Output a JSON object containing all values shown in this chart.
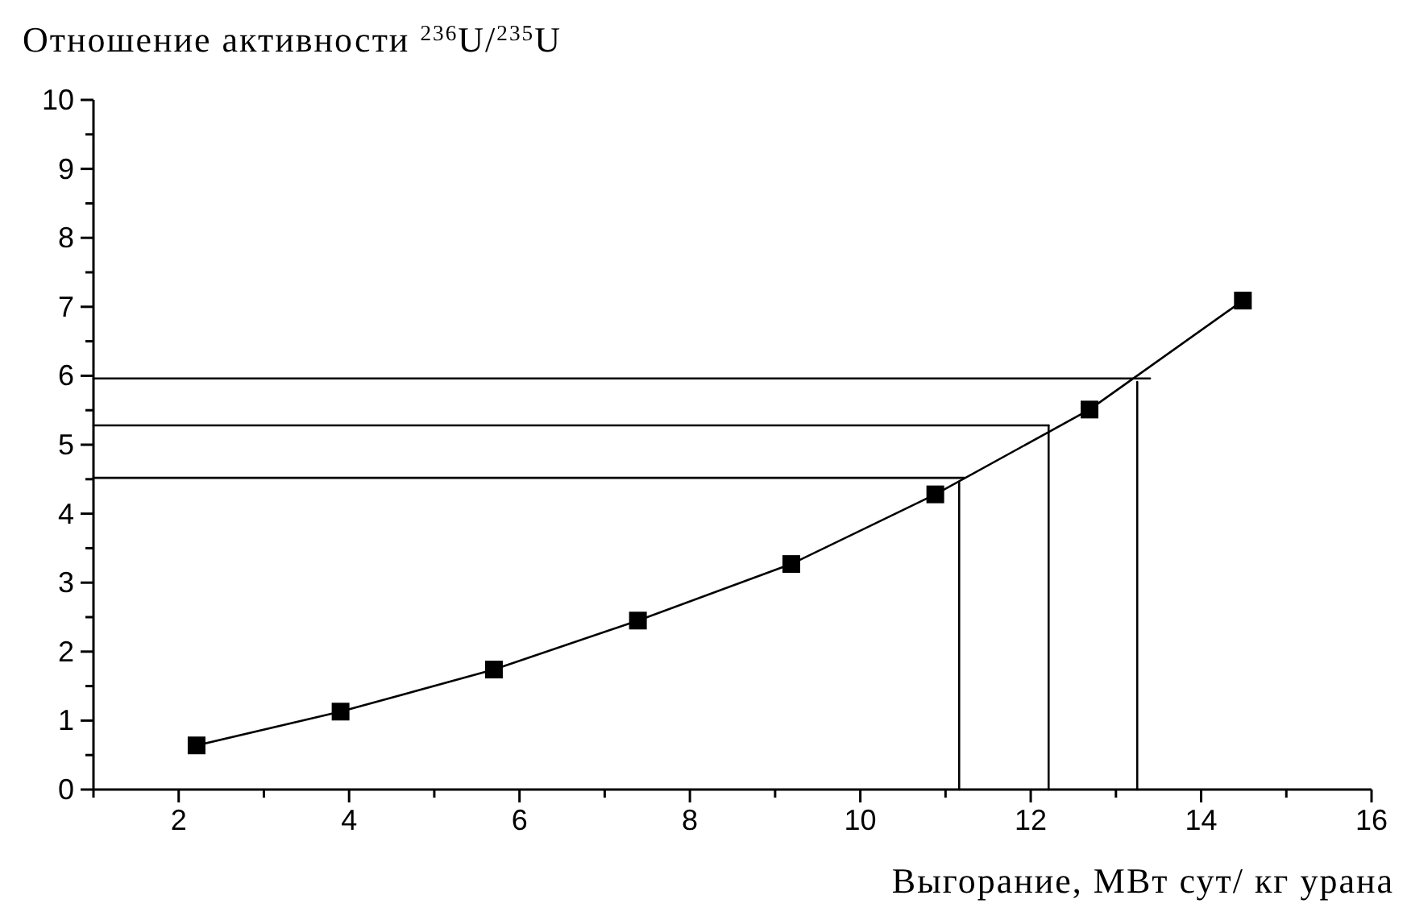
{
  "chart_data": {
    "type": "line",
    "ylabel": "Отношение активности $^{236}$U/$^{235}$U",
    "xlabel": "Выгорание, МВт сут/ кг урана",
    "xlim": [
      1,
      16
    ],
    "ylim": [
      0,
      10
    ],
    "xticks": [
      {
        "value": 1,
        "label": null
      },
      2,
      {
        "value": 3,
        "label": null
      },
      4,
      {
        "value": 5,
        "label": null
      },
      6,
      {
        "value": 7,
        "label": null
      },
      8,
      {
        "value": 9,
        "label": null
      },
      10,
      {
        "value": 11,
        "label": null
      },
      12,
      {
        "value": 13,
        "label": null
      },
      14,
      {
        "value": 15,
        "label": null
      },
      16
    ],
    "yticks": [
      0,
      {
        "value": 0.5,
        "label": null
      },
      1,
      {
        "value": 1.5,
        "label": null
      },
      2,
      {
        "value": 2.5,
        "label": null
      },
      3,
      {
        "value": 3.5,
        "label": null
      },
      4,
      {
        "value": 4.5,
        "label": null
      },
      5,
      {
        "value": 5.5,
        "label": null
      },
      6,
      {
        "value": 6.5,
        "label": null
      },
      7,
      {
        "value": 7.5,
        "label": null
      },
      8,
      {
        "value": 8.5,
        "label": null
      },
      9,
      {
        "value": 9.5,
        "label": null
      },
      10
    ],
    "grid": false,
    "series": [
      {
        "color": "#000000",
        "marker": "square",
        "x": [
          2.21,
          3.9,
          5.7,
          7.39,
          9.19,
          10.88,
          12.69,
          14.49
        ],
        "values": [
          0.64,
          1.13,
          1.74,
          2.45,
          3.27,
          4.28,
          5.51,
          7.09
        ]
      },
      {
        "color": "#000000",
        "marker": "none",
        "x": [
          1,
          11.22
        ],
        "values": [
          4.52,
          4.52
        ]
      },
      {
        "color": "#000000",
        "marker": "none",
        "x": [
          11.16,
          11.16
        ],
        "values": [
          0,
          4.45
        ]
      },
      {
        "color": "#000000",
        "marker": "none",
        "x": [
          1,
          12.21
        ],
        "values": [
          5.28,
          5.28
        ]
      },
      {
        "color": "#000000",
        "marker": "none",
        "x": [
          12.21,
          12.21
        ],
        "values": [
          0,
          5.28
        ]
      },
      {
        "color": "#000000",
        "marker": "none",
        "x": [
          1,
          13.4
        ],
        "values": [
          5.96,
          5.96
        ]
      },
      {
        "color": "#000000",
        "marker": "none",
        "x": [
          13.25,
          13.25
        ],
        "values": [
          0,
          5.91
        ]
      }
    ]
  }
}
